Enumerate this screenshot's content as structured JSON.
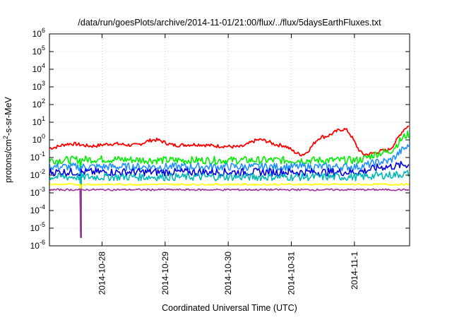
{
  "chart_data": {
    "type": "line",
    "title": "/data/run/goesPlots/archive/2014-11-01/21:00/flux/../flux/5daysEarthFluxes.txt",
    "xlabel": "Coordinated Universal Time (UTC)",
    "ylabel": "protons/cm²-s-sr-MeV",
    "y_scale": "log",
    "ylim": [
      1e-06,
      1000000.0
    ],
    "y_ticks": [
      {
        "value": 1e-06,
        "base": "10",
        "exp": "-6"
      },
      {
        "value": 1e-05,
        "base": "10",
        "exp": "-5"
      },
      {
        "value": 0.0001,
        "base": "10",
        "exp": "-4"
      },
      {
        "value": 0.001,
        "base": "10",
        "exp": "-3"
      },
      {
        "value": 0.01,
        "base": "10",
        "exp": "-2"
      },
      {
        "value": 0.1,
        "base": "10",
        "exp": "-1"
      },
      {
        "value": 1,
        "base": "10",
        "exp": "0"
      },
      {
        "value": 10.0,
        "base": "10",
        "exp": "1"
      },
      {
        "value": 100.0,
        "base": "10",
        "exp": "2"
      },
      {
        "value": 1000.0,
        "base": "10",
        "exp": "3"
      },
      {
        "value": 10000.0,
        "base": "10",
        "exp": "4"
      },
      {
        "value": 100000.0,
        "base": "10",
        "exp": "5"
      },
      {
        "value": 1000000.0,
        "base": "10",
        "exp": "6"
      }
    ],
    "x_range": [
      "2014-10-27T04:00",
      "2014-11-01T21:00"
    ],
    "x_ticks": [
      "2014-10-28",
      "2014-10-29",
      "2014-10-30",
      "2014-10-31",
      "2014-11-1"
    ],
    "x_tick_dates": [
      "2014-10-28T00:00",
      "2014-10-29T00:00",
      "2014-10-30T00:00",
      "2014-10-31T00:00",
      "2014-11-01T00:00"
    ],
    "grid": true,
    "legend": "none",
    "series": [
      {
        "color": "#ff0000",
        "x": [
          "2014-10-27T04:00",
          "2014-10-27T12:00",
          "2014-10-27T20:00",
          "2014-10-28T04:00",
          "2014-10-28T12:00",
          "2014-10-28T20:00",
          "2014-10-29T04:00",
          "2014-10-29T12:00",
          "2014-10-29T20:00",
          "2014-10-30T04:00",
          "2014-10-30T12:00",
          "2014-10-30T20:00",
          "2014-10-31T04:00",
          "2014-10-31T12:00",
          "2014-10-31T20:00",
          "2014-11-01T04:00",
          "2014-11-01T12:00",
          "2014-11-01T21:00"
        ],
        "values": [
          0.35,
          0.6,
          0.45,
          0.6,
          0.5,
          1.0,
          0.5,
          0.55,
          0.45,
          0.4,
          1.0,
          0.5,
          0.15,
          1.5,
          4.0,
          0.15,
          0.25,
          6.0
        ]
      },
      {
        "color": "#00ee00",
        "x": [
          "2014-10-27T04:00",
          "2014-10-28T00:00",
          "2014-10-29T00:00",
          "2014-10-30T00:00",
          "2014-10-31T00:00",
          "2014-11-01T00:00",
          "2014-11-01T12:00",
          "2014-11-01T21:00"
        ],
        "values": [
          0.07,
          0.08,
          0.07,
          0.07,
          0.07,
          0.07,
          0.2,
          2.0
        ]
      },
      {
        "color": "#1e90ff",
        "x": [
          "2014-10-27T04:00",
          "2014-10-28T00:00",
          "2014-10-29T00:00",
          "2014-10-30T00:00",
          "2014-10-31T00:00",
          "2014-11-01T00:00",
          "2014-11-01T12:00",
          "2014-11-01T21:00"
        ],
        "values": [
          0.03,
          0.03,
          0.03,
          0.03,
          0.03,
          0.03,
          0.06,
          0.4
        ]
      },
      {
        "color": "#0000e0",
        "x": [
          "2014-10-27T04:00",
          "2014-10-28T00:00",
          "2014-10-29T00:00",
          "2014-10-30T00:00",
          "2014-10-31T00:00",
          "2014-11-01T00:00",
          "2014-11-01T12:00",
          "2014-11-01T21:00"
        ],
        "values": [
          0.015,
          0.015,
          0.015,
          0.015,
          0.015,
          0.015,
          0.03,
          0.04
        ]
      },
      {
        "color": "#00b8b8",
        "x": [
          "2014-10-27T04:00",
          "2014-10-28T00:00",
          "2014-10-29T00:00",
          "2014-10-30T00:00",
          "2014-10-31T00:00",
          "2014-11-01T00:00",
          "2014-11-01T12:00",
          "2014-11-01T21:00"
        ],
        "values": [
          0.008,
          0.008,
          0.008,
          0.008,
          0.008,
          0.008,
          0.01,
          0.012
        ]
      },
      {
        "color": "#ffff00",
        "x": [
          "2014-10-27T04:00",
          "2014-10-28T00:00",
          "2014-10-29T00:00",
          "2014-10-30T00:00",
          "2014-10-31T00:00",
          "2014-11-01T00:00",
          "2014-11-01T21:00"
        ],
        "values": [
          0.003,
          0.003,
          0.003,
          0.003,
          0.003,
          0.003,
          0.003
        ]
      },
      {
        "color": "#993399",
        "x": [
          "2014-10-27T04:00",
          "2014-10-28T00:00",
          "2014-10-29T00:00",
          "2014-10-30T00:00",
          "2014-10-31T00:00",
          "2014-11-01T00:00",
          "2014-11-01T21:00"
        ],
        "values": [
          0.0015,
          0.0015,
          0.0015,
          0.0015,
          0.0015,
          0.0015,
          0.0015
        ]
      }
    ],
    "dropout": {
      "x": "2014-10-27T16:00",
      "min_value": 3e-06
    }
  }
}
